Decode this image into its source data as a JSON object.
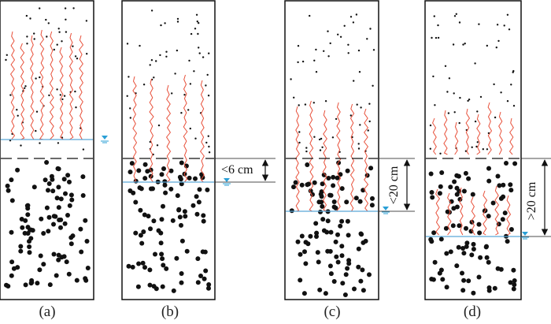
{
  "panels": [
    {
      "label": "(a)",
      "annotation": ""
    },
    {
      "label": "(b)",
      "annotation": "<6 cm"
    },
    {
      "label": "(c)",
      "annotation": "<20 cm"
    },
    {
      "label": "(d)",
      "annotation": ">20 cm"
    }
  ],
  "colors": {
    "outline": "#111111",
    "particle": "#111111",
    "root": "#e8503a",
    "water_line": "#5aa8d8",
    "water_marker": "#2a9fd6"
  },
  "icons": [
    "water-table-marker-icon",
    "double-arrow-icon"
  ]
}
